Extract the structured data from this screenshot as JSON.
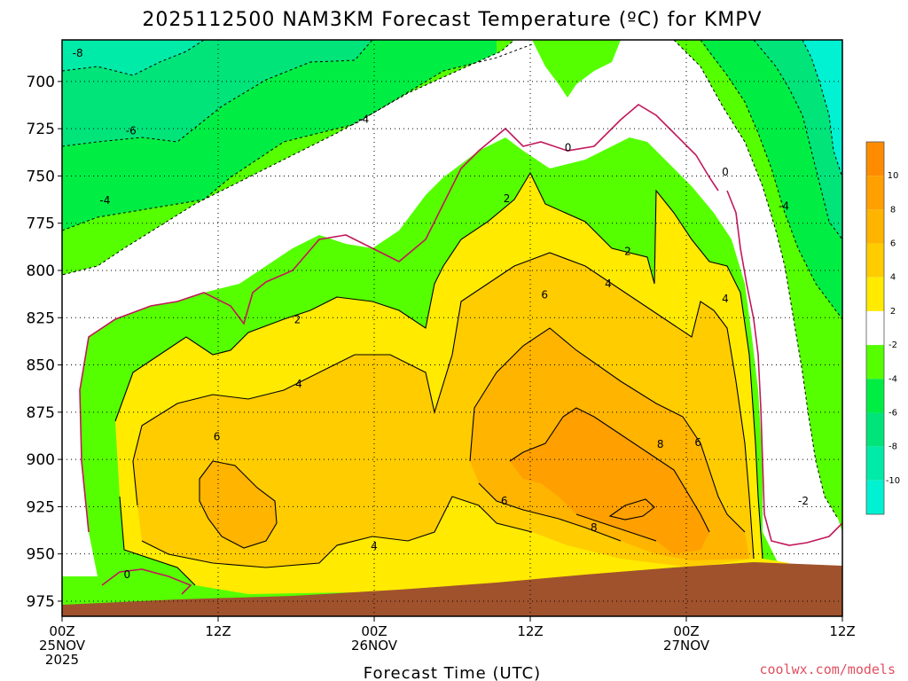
{
  "chart_data": {
    "type": "heatmap",
    "title": "2025112500 NAM3KM Forecast Temperature (ºC) for KMPV",
    "xlabel": "Forecast Time (UTC)",
    "ylabel": "",
    "y_axis": {
      "unit": "hPa",
      "ylim": [
        983,
        678
      ],
      "ticks": [
        700,
        725,
        750,
        775,
        800,
        825,
        850,
        875,
        900,
        925,
        950,
        975
      ]
    },
    "x_axis": {
      "unit": "forecast hour",
      "xlim": [
        0,
        60
      ],
      "ticks": [
        {
          "hour": 0,
          "labels": [
            "00Z",
            "25NOV",
            "2025"
          ]
        },
        {
          "hour": 12,
          "labels": [
            "12Z"
          ]
        },
        {
          "hour": 24,
          "labels": [
            "00Z",
            "26NOV"
          ]
        },
        {
          "hour": 36,
          "labels": [
            "12Z"
          ]
        },
        {
          "hour": 48,
          "labels": [
            "00Z",
            "27NOV"
          ]
        },
        {
          "hour": 60,
          "labels": [
            "12Z"
          ]
        }
      ]
    },
    "colorbar": {
      "labels": [
        "10",
        "8",
        "6",
        "4",
        "2",
        "-2",
        "-4",
        "-6",
        "-8",
        "-10"
      ],
      "bins": [
        {
          "range": [
            10,
            12
          ],
          "color": "#ff8c00"
        },
        {
          "range": [
            8,
            10
          ],
          "color": "#ff9f00"
        },
        {
          "range": [
            6,
            8
          ],
          "color": "#ffb400"
        },
        {
          "range": [
            4,
            6
          ],
          "color": "#ffcc00"
        },
        {
          "range": [
            2,
            4
          ],
          "color": "#ffea00"
        },
        {
          "range": [
            -2,
            2
          ],
          "color": "#ffffff"
        },
        {
          "range": [
            -4,
            -2
          ],
          "color": "#55ff00"
        },
        {
          "range": [
            -6,
            -4
          ],
          "color": "#00ee44"
        },
        {
          "range": [
            -8,
            -6
          ],
          "color": "#00e47a"
        },
        {
          "range": [
            -10,
            -8
          ],
          "color": "#00eba8"
        },
        {
          "range": [
            -12,
            -10
          ],
          "color": "#00f2d2"
        }
      ]
    },
    "contour_labels": [
      {
        "text": "-8",
        "hour": 1.2,
        "hPa": 685
      },
      {
        "text": "-6",
        "hour": 5.3,
        "hPa": 726
      },
      {
        "text": "-4",
        "hour": 3.3,
        "hPa": 763
      },
      {
        "text": "-4",
        "hour": 23.2,
        "hPa": 720
      },
      {
        "text": "0",
        "hour": 38.9,
        "hPa": 735
      },
      {
        "text": "0",
        "hour": 51.0,
        "hPa": 748
      },
      {
        "text": "-4",
        "hour": 55.5,
        "hPa": 766
      },
      {
        "text": "2",
        "hour": 34.2,
        "hPa": 762
      },
      {
        "text": "2",
        "hour": 43.5,
        "hPa": 790
      },
      {
        "text": "2",
        "hour": 18.1,
        "hPa": 826
      },
      {
        "text": "4",
        "hour": 42.0,
        "hPa": 807
      },
      {
        "text": "4",
        "hour": 51.0,
        "hPa": 815
      },
      {
        "text": "6",
        "hour": 37.1,
        "hPa": 813
      },
      {
        "text": "4",
        "hour": 18.2,
        "hPa": 860
      },
      {
        "text": "6",
        "hour": 11.9,
        "hPa": 888
      },
      {
        "text": "8",
        "hour": 46.0,
        "hPa": 892
      },
      {
        "text": "6",
        "hour": 48.9,
        "hPa": 891
      },
      {
        "text": "6",
        "hour": 34.0,
        "hPa": 922
      },
      {
        "text": "8",
        "hour": 40.9,
        "hPa": 936
      },
      {
        "text": "-2",
        "hour": 57.0,
        "hPa": 922
      },
      {
        "text": "4",
        "hour": 24.0,
        "hPa": 946
      },
      {
        "text": "0",
        "hour": 5.0,
        "hPa": 961
      }
    ],
    "terrain_color": "#a0522d",
    "contour_color_zero": "#c2185b"
  },
  "credit": "coolwx.com/models"
}
